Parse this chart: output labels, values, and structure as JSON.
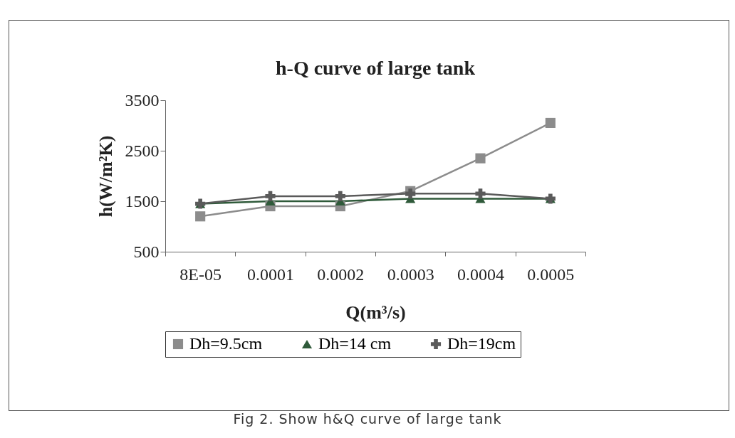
{
  "chart_data": {
    "type": "line",
    "title": "h-Q curve of large tank",
    "xlabel": "Q(m³/s)",
    "ylabel": "h(W/m²K)",
    "categories": [
      "8E-05",
      "0.0001",
      "0.0002",
      "0.0003",
      "0.0004",
      "0.0005"
    ],
    "ylim": [
      500,
      3500
    ],
    "yticks": [
      500,
      1500,
      2500,
      3500
    ],
    "legend": "bottom",
    "line_style": "solid",
    "series": [
      {
        "name": "Dh=9.5cm",
        "color": "#8c8c8c",
        "marker": "square",
        "values": [
          1200,
          1400,
          1400,
          1700,
          2350,
          3050
        ]
      },
      {
        "name": "Dh=14 cm",
        "color": "#2f5a3a",
        "marker": "triangle",
        "values": [
          1450,
          1500,
          1500,
          1550,
          1550,
          1550
        ]
      },
      {
        "name": "Dh=19cm",
        "color": "#5a5a5a",
        "marker": "cross",
        "values": [
          1450,
          1600,
          1600,
          1650,
          1650,
          1550
        ]
      }
    ],
    "annotations": [
      "Fig 2.  Show h&Q curve of large tank"
    ]
  }
}
